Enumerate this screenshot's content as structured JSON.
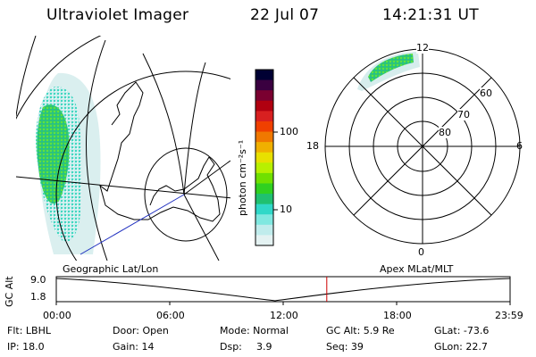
{
  "header": {
    "title": "Ultraviolet Imager",
    "date": "22 Jul 07",
    "time": "14:21:31 UT"
  },
  "panels": {
    "geographic_label": "Geographic Lat/Lon",
    "apex_label": "Apex MLat/MLT"
  },
  "colorbar": {
    "unit_label": "photon cm⁻²s⁻¹",
    "ticks": [
      "100",
      "10"
    ],
    "colors": [
      "#000033",
      "#3a0040",
      "#7a0030",
      "#b00010",
      "#d82020",
      "#f04000",
      "#f07800",
      "#f0b000",
      "#e8e000",
      "#b8f000",
      "#70e000",
      "#30d020",
      "#20c070",
      "#30d8c8",
      "#80e8e0",
      "#c0ecec",
      "#e4f2f2"
    ]
  },
  "polar": {
    "mlt_labels": [
      "12",
      "18",
      "6",
      "0"
    ],
    "mlat_labels": [
      "60",
      "70",
      "80"
    ]
  },
  "timeline": {
    "axis_label": "GC Alt",
    "y_ticks": [
      "9.0",
      "1.8"
    ],
    "x_ticks": [
      "00:00",
      "06:00",
      "12:00",
      "18:00",
      "23:59"
    ],
    "current_time_fraction": 0.596,
    "marker_color": "#cc0000"
  },
  "info": {
    "filter": "Flt: LBHL",
    "door": "Door: Open",
    "mode": "Mode: Normal",
    "gc_alt": "GC Alt: 5.9 Re",
    "glat": "GLat: -73.6",
    "ip": "IP: 18.0",
    "gain": "Gain: 14",
    "dsp_label": "Dsp:",
    "dsp_value": "3.9",
    "seq": "Seq: 39",
    "glon": "GLon:  22.7"
  }
}
